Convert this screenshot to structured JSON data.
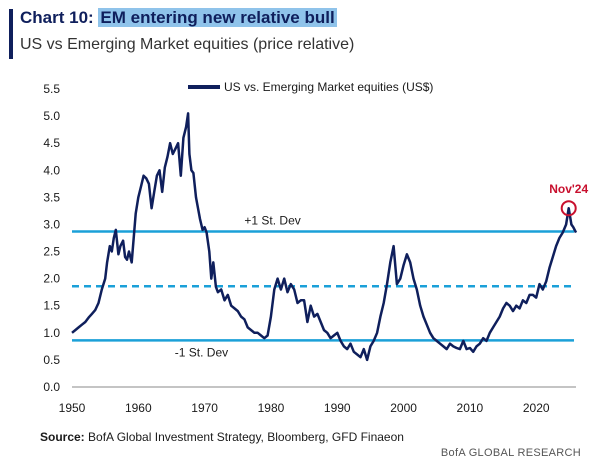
{
  "header": {
    "title_prefix": "Chart 10: ",
    "title_highlight": "EM entering new relative bull",
    "subtitle": "US vs Emerging Market equities (price relative)"
  },
  "footer": {
    "source_label": "Source:",
    "source_text": " BofA Global Investment Strategy, Bloomberg, GFD Finaeon",
    "brand": "BofA GLOBAL RESEARCH"
  },
  "colors": {
    "series": "#0f1f5c",
    "bands": "#1ba0d8",
    "highlight": "#c8102e"
  },
  "chart_data": {
    "type": "line",
    "legend": "US vs. Emerging Market equities (US$)",
    "legend_position": "top-center",
    "xlim": [
      1950,
      2026
    ],
    "ylim": [
      0,
      5.5
    ],
    "x_ticks": [
      1950,
      1960,
      1970,
      1980,
      1990,
      2000,
      2010,
      2020
    ],
    "y_ticks": [
      0.0,
      0.5,
      1.0,
      1.5,
      2.0,
      2.5,
      3.0,
      3.5,
      4.0,
      4.5,
      5.0,
      5.5
    ],
    "x_tick_labels": [
      "1950",
      "1960",
      "1970",
      "1980",
      "1990",
      "2000",
      "2010",
      "2020"
    ],
    "y_tick_labels": [
      "0.0",
      "0.5",
      "1.0",
      "1.5",
      "2.0",
      "2.5",
      "3.0",
      "3.5",
      "4.0",
      "4.5",
      "5.0",
      "5.5"
    ],
    "grid": false,
    "reference_lines": [
      {
        "label": "+1 St. Dev",
        "value": 2.87,
        "style": "solid"
      },
      {
        "label": "",
        "value": 1.86,
        "style": "dashed"
      },
      {
        "label": "-1 St. Dev",
        "value": 0.86,
        "style": "solid"
      }
    ],
    "annotation": {
      "label": "Nov'24",
      "x": 2024.9,
      "y": 3.3
    },
    "series": [
      {
        "name": "US vs. Emerging Market equities (US$)",
        "x": [
          1950,
          1950.5,
          1951,
          1951.5,
          1952,
          1952.5,
          1953,
          1953.5,
          1954,
          1954.5,
          1955,
          1955.3,
          1955.7,
          1956,
          1956.3,
          1956.6,
          1957,
          1957.3,
          1957.7,
          1958,
          1958.3,
          1958.6,
          1959,
          1959.3,
          1959.6,
          1960,
          1960.4,
          1960.8,
          1961.2,
          1961.6,
          1962,
          1962.4,
          1962.8,
          1963.2,
          1963.6,
          1964,
          1964.4,
          1964.8,
          1965.2,
          1965.6,
          1966,
          1966.4,
          1966.8,
          1967.2,
          1967.5,
          1967.7,
          1968,
          1968.3,
          1968.7,
          1969,
          1969.3,
          1969.7,
          1970,
          1970.3,
          1970.7,
          1971,
          1971.3,
          1971.7,
          1972,
          1972.5,
          1973,
          1973.5,
          1974,
          1974.5,
          1975,
          1975.5,
          1976,
          1976.5,
          1977,
          1977.5,
          1978,
          1978.5,
          1979,
          1979.5,
          1980,
          1980.5,
          1981,
          1981.5,
          1982,
          1982.5,
          1983,
          1983.5,
          1984,
          1984.5,
          1985,
          1985.5,
          1986,
          1986.5,
          1987,
          1987.5,
          1988,
          1988.5,
          1989,
          1989.5,
          1990,
          1990.5,
          1991,
          1991.5,
          1992,
          1992.5,
          1993,
          1993.5,
          1994,
          1994.5,
          1995,
          1995.5,
          1996,
          1996.5,
          1997,
          1997.5,
          1998,
          1998.5,
          1999,
          1999.5,
          2000,
          2000.5,
          2001,
          2001.5,
          2002,
          2002.5,
          2003,
          2003.5,
          2004,
          2004.5,
          2005,
          2005.5,
          2006,
          2006.5,
          2007,
          2007.5,
          2008,
          2008.5,
          2009,
          2009.5,
          2010,
          2010.5,
          2011,
          2011.5,
          2012,
          2012.5,
          2013,
          2013.5,
          2014,
          2014.5,
          2015,
          2015.5,
          2016,
          2016.5,
          2017,
          2017.5,
          2018,
          2018.5,
          2019,
          2019.5,
          2020,
          2020.5,
          2021,
          2021.5,
          2022,
          2022.5,
          2023,
          2023.5,
          2024,
          2024.5,
          2024.9,
          2025.3,
          2025.6,
          2026
        ],
        "values": [
          1.0,
          1.05,
          1.1,
          1.15,
          1.2,
          1.28,
          1.35,
          1.42,
          1.55,
          1.8,
          2.0,
          2.3,
          2.6,
          2.5,
          2.75,
          2.9,
          2.45,
          2.6,
          2.7,
          2.4,
          2.35,
          2.5,
          2.3,
          2.75,
          3.2,
          3.5,
          3.7,
          3.9,
          3.85,
          3.75,
          3.3,
          3.6,
          3.9,
          4.0,
          3.6,
          4.05,
          4.25,
          4.5,
          4.3,
          4.4,
          4.5,
          3.9,
          4.6,
          4.8,
          5.05,
          4.3,
          4.0,
          3.95,
          3.5,
          3.3,
          3.1,
          2.9,
          2.95,
          2.85,
          2.5,
          2.0,
          2.3,
          1.85,
          1.75,
          1.8,
          1.6,
          1.7,
          1.5,
          1.45,
          1.4,
          1.3,
          1.25,
          1.1,
          1.05,
          1.0,
          1.0,
          0.95,
          0.9,
          0.95,
          1.3,
          1.8,
          2.0,
          1.8,
          2.0,
          1.75,
          1.9,
          1.8,
          1.55,
          1.6,
          1.6,
          1.2,
          1.5,
          1.3,
          1.35,
          1.2,
          1.05,
          1.0,
          0.9,
          0.95,
          1.0,
          0.85,
          0.75,
          0.7,
          0.8,
          0.65,
          0.6,
          0.55,
          0.7,
          0.5,
          0.75,
          0.85,
          1.0,
          1.3,
          1.55,
          1.9,
          2.3,
          2.6,
          1.9,
          2.0,
          2.25,
          2.45,
          2.3,
          2.0,
          1.8,
          1.5,
          1.3,
          1.15,
          1.0,
          0.9,
          0.85,
          0.8,
          0.75,
          0.7,
          0.8,
          0.75,
          0.72,
          0.7,
          0.85,
          0.7,
          0.72,
          0.65,
          0.75,
          0.8,
          0.9,
          0.85,
          1.0,
          1.1,
          1.2,
          1.3,
          1.45,
          1.55,
          1.5,
          1.4,
          1.5,
          1.45,
          1.6,
          1.55,
          1.7,
          1.7,
          1.65,
          1.9,
          1.8,
          1.95,
          2.2,
          2.4,
          2.6,
          2.75,
          2.85,
          3.0,
          3.3,
          3.0,
          2.95,
          2.85
        ]
      }
    ]
  }
}
